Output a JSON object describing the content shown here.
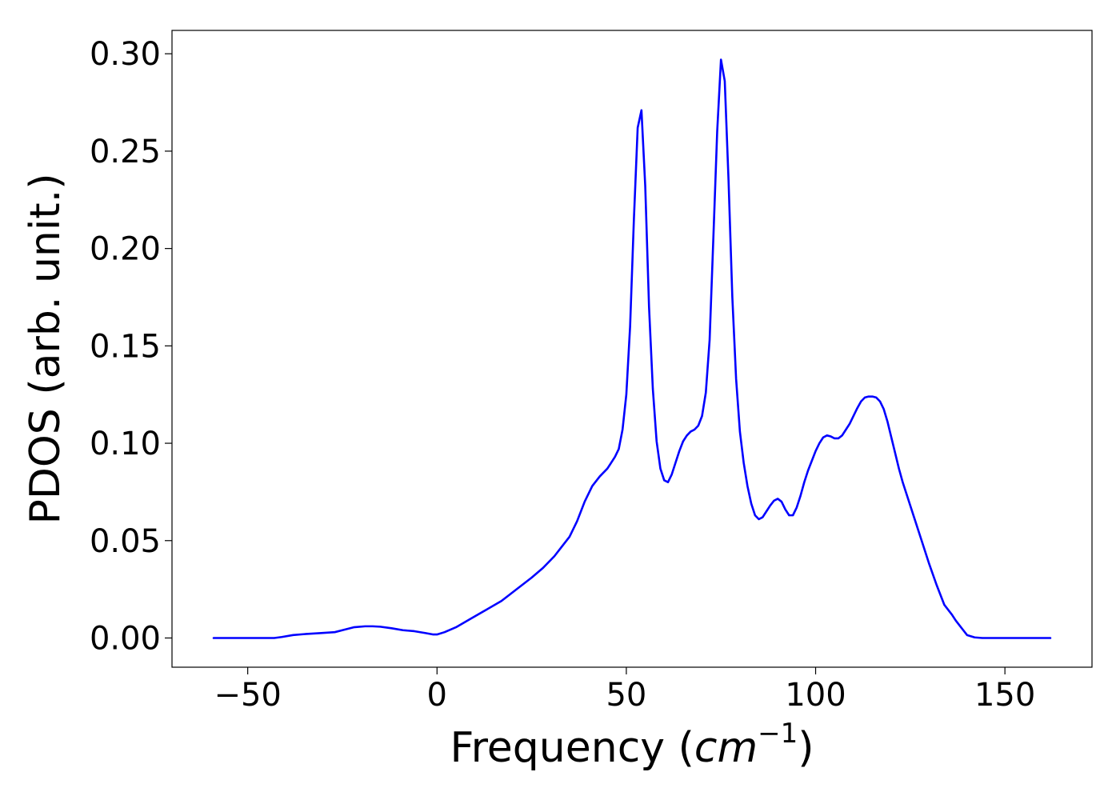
{
  "chart_data": {
    "type": "line",
    "title": "",
    "xlabel_main": "Frequency (",
    "xlabel_unit": "cm",
    "xlabel_exp": "−1",
    "xlabel_close": ")",
    "ylabel": "PDOS (arb. unit.)",
    "xlim": [
      -70,
      173
    ],
    "ylim": [
      -0.015,
      0.312
    ],
    "xticks": [
      -50,
      0,
      50,
      100,
      150
    ],
    "xtick_labels": [
      "−50",
      "0",
      "50",
      "100",
      "150"
    ],
    "yticks": [
      0.0,
      0.05,
      0.1,
      0.15,
      0.2,
      0.25,
      0.3
    ],
    "ytick_labels": [
      "0.00",
      "0.05",
      "0.10",
      "0.15",
      "0.20",
      "0.25",
      "0.30"
    ],
    "grid": false,
    "legend": "none",
    "series": [
      {
        "color": "#0000ff",
        "x": [
          -59,
          -50,
          -43,
          -41,
          -38,
          -35,
          -31,
          -27,
          -25,
          -22,
          -19,
          -17,
          -15,
          -12,
          -9,
          -6,
          -3,
          -1,
          0,
          2,
          5,
          9,
          13,
          17,
          21,
          25,
          28,
          31,
          33,
          35,
          37,
          39,
          41,
          43,
          45,
          46,
          47,
          48,
          49,
          50,
          51,
          52,
          53,
          54,
          55,
          56,
          57,
          58,
          59,
          60,
          61,
          62,
          63,
          64,
          65,
          66,
          67,
          68,
          69,
          70,
          71,
          72,
          73,
          74,
          75,
          76,
          77,
          78,
          79,
          80,
          81,
          82,
          83,
          84,
          85,
          86,
          87,
          88,
          89,
          90,
          91,
          92,
          93,
          94,
          95,
          96,
          97,
          98,
          99,
          100,
          101,
          102,
          103,
          104,
          105,
          106,
          107,
          108,
          109,
          110,
          111,
          112,
          113,
          114,
          115,
          116,
          117,
          118,
          119,
          120,
          121,
          122,
          123,
          124,
          126,
          128,
          130,
          132,
          134,
          136,
          137,
          138,
          139,
          140,
          142,
          144,
          145,
          146,
          148,
          152,
          162
        ],
        "y": [
          0.0,
          0.0,
          0.0,
          0.0005,
          0.0015,
          0.002,
          0.0025,
          0.003,
          0.004,
          0.0055,
          0.006,
          0.006,
          0.0058,
          0.005,
          0.004,
          0.0035,
          0.0025,
          0.0018,
          0.0018,
          0.003,
          0.0055,
          0.01,
          0.0145,
          0.019,
          0.025,
          0.031,
          0.036,
          0.042,
          0.047,
          0.052,
          0.06,
          0.07,
          0.078,
          0.083,
          0.087,
          0.09,
          0.093,
          0.097,
          0.107,
          0.125,
          0.16,
          0.215,
          0.262,
          0.271,
          0.232,
          0.17,
          0.128,
          0.101,
          0.087,
          0.081,
          0.08,
          0.084,
          0.09,
          0.096,
          0.101,
          0.104,
          0.106,
          0.107,
          0.109,
          0.114,
          0.126,
          0.153,
          0.206,
          0.26,
          0.297,
          0.286,
          0.235,
          0.175,
          0.133,
          0.106,
          0.09,
          0.078,
          0.069,
          0.063,
          0.061,
          0.062,
          0.065,
          0.068,
          0.0705,
          0.0715,
          0.07,
          0.066,
          0.063,
          0.063,
          0.067,
          0.073,
          0.08,
          0.086,
          0.091,
          0.096,
          0.1,
          0.103,
          0.104,
          0.1035,
          0.1025,
          0.1025,
          0.104,
          0.107,
          0.11,
          0.114,
          0.118,
          0.1215,
          0.1235,
          0.124,
          0.124,
          0.1235,
          0.1215,
          0.1175,
          0.111,
          0.103,
          0.095,
          0.087,
          0.08,
          0.074,
          0.062,
          0.05,
          0.038,
          0.027,
          0.017,
          0.012,
          0.009,
          0.0065,
          0.004,
          0.0015,
          0.0003,
          0.0,
          0.0,
          0.0,
          0.0,
          0.0,
          0.0
        ]
      }
    ]
  }
}
